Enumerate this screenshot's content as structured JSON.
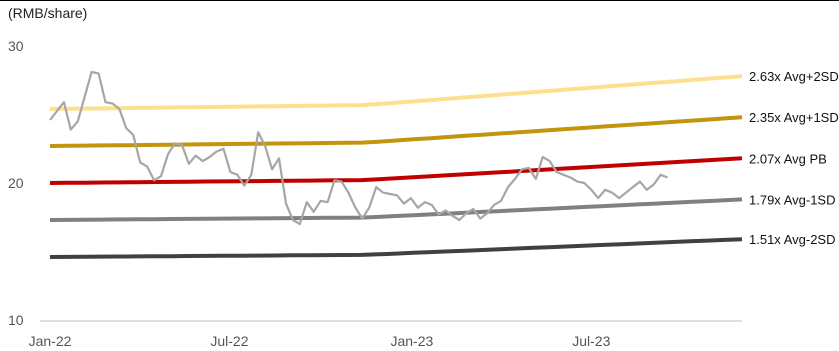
{
  "chart_data": {
    "type": "line",
    "ylabel": "(RMB/share)",
    "ylim": [
      10,
      30
    ],
    "yticks": [
      10,
      20,
      30
    ],
    "xlim": [
      "2022-01-01",
      "2023-11-30"
    ],
    "xticks": [
      {
        "label": "Jan-22",
        "date": "2022-01-01"
      },
      {
        "label": "Jul-22",
        "date": "2022-07-01"
      },
      {
        "label": "Jan-23",
        "date": "2023-01-01"
      },
      {
        "label": "Jul-23",
        "date": "2023-07-01"
      }
    ],
    "grid": false,
    "legend": "right-edge labels",
    "bands": [
      {
        "name": "2.63x Avg+2SD",
        "color": "#fde08f",
        "start": 25.4,
        "end": 27.8
      },
      {
        "name": "2.35x Avg+1SD",
        "color": "#c3940e",
        "start": 22.7,
        "end": 24.8
      },
      {
        "name": "2.07x Avg PB",
        "color": "#c00000",
        "start": 20.0,
        "end": 21.8
      },
      {
        "name": "1.79x Avg-1SD",
        "color": "#808080",
        "start": 17.3,
        "end": 18.8
      },
      {
        "name": "1.51x Avg-2SD",
        "color": "#404040",
        "start": 14.6,
        "end": 15.9
      }
    ],
    "price_series": {
      "color": "#a6a6a6",
      "points": [
        [
          "2022-01-01",
          24.6
        ],
        [
          "2022-01-15",
          25.9
        ],
        [
          "2022-01-22",
          23.9
        ],
        [
          "2022-01-29",
          24.5
        ],
        [
          "2022-02-12",
          28.1
        ],
        [
          "2022-02-19",
          28.0
        ],
        [
          "2022-02-26",
          25.9
        ],
        [
          "2022-03-05",
          25.8
        ],
        [
          "2022-03-12",
          25.4
        ],
        [
          "2022-03-19",
          24.0
        ],
        [
          "2022-03-26",
          23.5
        ],
        [
          "2022-04-02",
          21.5
        ],
        [
          "2022-04-09",
          21.2
        ],
        [
          "2022-04-16",
          20.2
        ],
        [
          "2022-04-23",
          20.5
        ],
        [
          "2022-04-30",
          22.1
        ],
        [
          "2022-05-07",
          22.9
        ],
        [
          "2022-05-14",
          22.8
        ],
        [
          "2022-05-21",
          21.4
        ],
        [
          "2022-05-28",
          22.0
        ],
        [
          "2022-06-04",
          21.6
        ],
        [
          "2022-06-11",
          21.9
        ],
        [
          "2022-06-18",
          22.3
        ],
        [
          "2022-06-25",
          22.5
        ],
        [
          "2022-07-02",
          20.8
        ],
        [
          "2022-07-09",
          20.6
        ],
        [
          "2022-07-16",
          19.8
        ],
        [
          "2022-07-23",
          20.6
        ],
        [
          "2022-07-30",
          23.7
        ],
        [
          "2022-08-06",
          22.7
        ],
        [
          "2022-08-13",
          21.0
        ],
        [
          "2022-08-20",
          21.8
        ],
        [
          "2022-08-27",
          18.5
        ],
        [
          "2022-09-03",
          17.3
        ],
        [
          "2022-09-10",
          17.0
        ],
        [
          "2022-09-17",
          18.6
        ],
        [
          "2022-09-24",
          17.9
        ],
        [
          "2022-10-01",
          18.7
        ],
        [
          "2022-10-08",
          18.6
        ],
        [
          "2022-10-15",
          20.2
        ],
        [
          "2022-10-22",
          20.1
        ],
        [
          "2022-10-29",
          19.3
        ],
        [
          "2022-11-05",
          18.2
        ],
        [
          "2022-11-12",
          17.4
        ],
        [
          "2022-11-19",
          18.2
        ],
        [
          "2022-11-26",
          19.7
        ],
        [
          "2022-12-03",
          19.3
        ],
        [
          "2022-12-10",
          19.2
        ],
        [
          "2022-12-17",
          19.1
        ],
        [
          "2022-12-24",
          18.5
        ],
        [
          "2022-12-31",
          18.9
        ],
        [
          "2023-01-07",
          18.2
        ],
        [
          "2023-01-14",
          18.6
        ],
        [
          "2023-01-21",
          18.4
        ],
        [
          "2023-01-28",
          17.7
        ],
        [
          "2023-02-04",
          18.0
        ],
        [
          "2023-02-11",
          17.6
        ],
        [
          "2023-02-18",
          17.3
        ],
        [
          "2023-02-25",
          17.8
        ],
        [
          "2023-03-04",
          18.1
        ],
        [
          "2023-03-11",
          17.4
        ],
        [
          "2023-03-18",
          17.8
        ],
        [
          "2023-03-25",
          18.4
        ],
        [
          "2023-04-01",
          18.7
        ],
        [
          "2023-04-08",
          19.7
        ],
        [
          "2023-04-15",
          20.3
        ],
        [
          "2023-04-22",
          21.0
        ],
        [
          "2023-04-29",
          21.1
        ],
        [
          "2023-05-06",
          20.3
        ],
        [
          "2023-05-13",
          21.9
        ],
        [
          "2023-05-20",
          21.6
        ],
        [
          "2023-05-27",
          20.8
        ],
        [
          "2023-06-03",
          20.6
        ],
        [
          "2023-06-10",
          20.4
        ],
        [
          "2023-06-17",
          20.1
        ],
        [
          "2023-06-24",
          20.0
        ],
        [
          "2023-07-01",
          19.5
        ],
        [
          "2023-07-08",
          18.9
        ],
        [
          "2023-07-15",
          19.5
        ],
        [
          "2023-07-22",
          19.3
        ],
        [
          "2023-07-29",
          18.9
        ],
        [
          "2023-08-05",
          19.3
        ],
        [
          "2023-08-12",
          19.7
        ],
        [
          "2023-08-19",
          20.1
        ],
        [
          "2023-08-26",
          19.5
        ],
        [
          "2023-09-02",
          19.9
        ],
        [
          "2023-09-09",
          20.6
        ],
        [
          "2023-09-16",
          20.4
        ]
      ]
    }
  }
}
